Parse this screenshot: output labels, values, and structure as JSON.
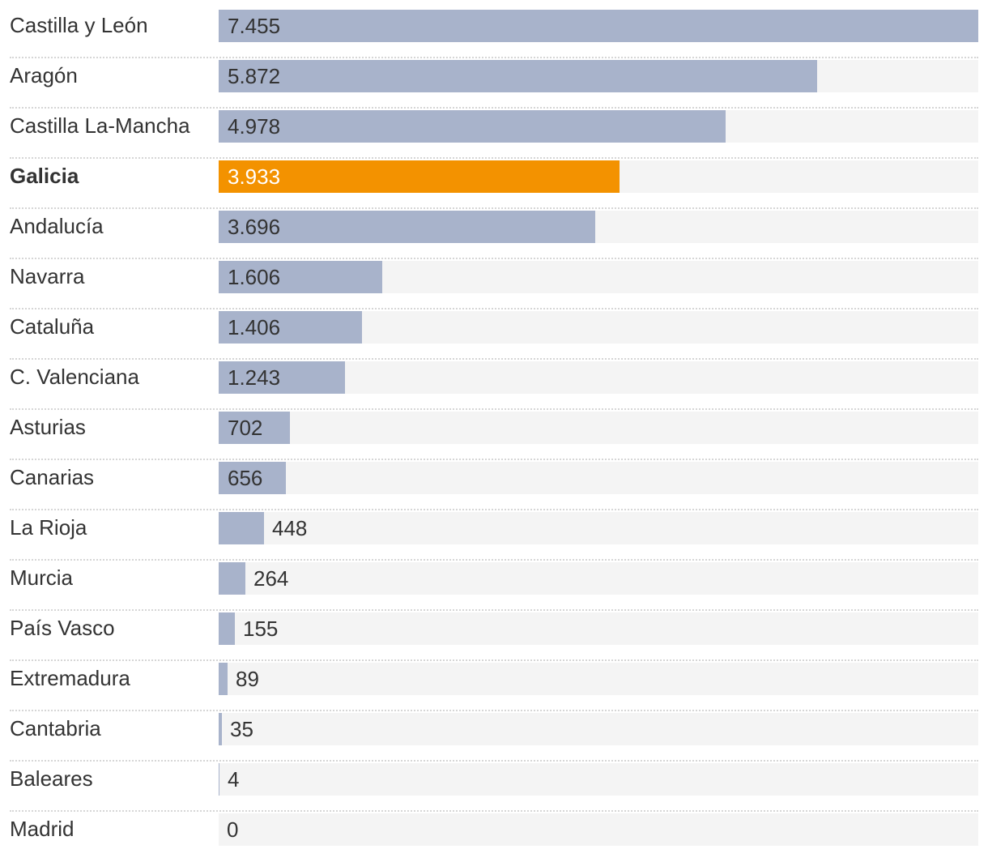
{
  "chart_data": {
    "type": "bar",
    "orientation": "horizontal",
    "title": "",
    "xlabel": "",
    "ylabel": "",
    "xlim": [
      0,
      7455
    ],
    "grid": false,
    "legend": "none",
    "categories": [
      "Castilla y León",
      "Aragón",
      "Castilla La-Mancha",
      "Galicia",
      "Andalucía",
      "Navarra",
      "Cataluña",
      "C. Valenciana",
      "Asturias",
      "Canarias",
      "La Rioja",
      "Murcia",
      "País Vasco",
      "Extremadura",
      "Cantabria",
      "Baleares",
      "Madrid"
    ],
    "values": [
      7455,
      5872,
      4978,
      3933,
      3696,
      1606,
      1406,
      1243,
      702,
      656,
      448,
      264,
      155,
      89,
      35,
      4,
      0
    ],
    "value_labels": [
      "7.455",
      "5.872",
      "4.978",
      "3.933",
      "3.696",
      "1.606",
      "1.406",
      "1.243",
      "702",
      "656",
      "448",
      "264",
      "155",
      "89",
      "35",
      "4",
      "0"
    ],
    "highlight": "Galicia",
    "colors": {
      "bar": "#a8b3cb",
      "highlight": "#f39200",
      "track": "#f4f4f4",
      "text": "#333333",
      "highlight_text": "#ffffff",
      "divider": "#d6d6d6"
    }
  }
}
